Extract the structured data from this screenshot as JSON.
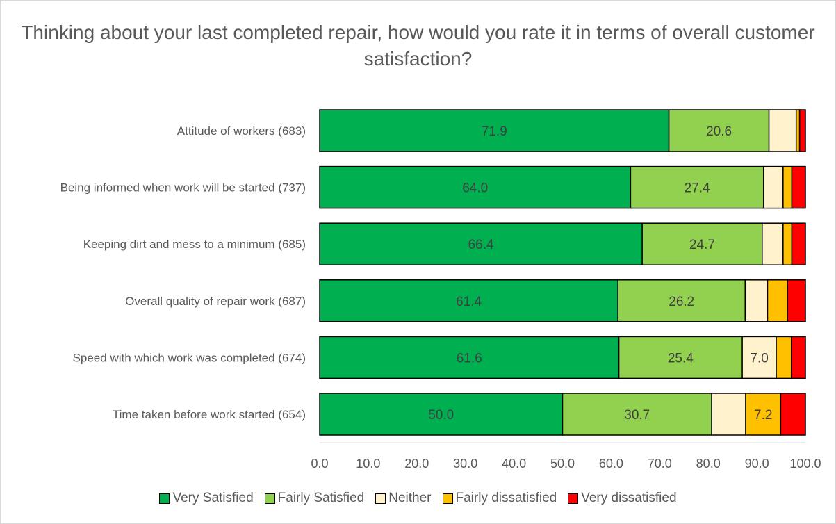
{
  "chart_data": {
    "type": "bar",
    "orientation": "horizontal",
    "stacked": true,
    "title": "Thinking about your last completed repair, how would you rate it in terms of overall customer satisfaction?",
    "categories": [
      "Attitude of workers (683)",
      "Being informed when work will be started (737)",
      "Keeping dirt and mess to a minimum (685)",
      "Overall quality of repair work (687)",
      "Speed with which work was completed (674)",
      "Time taken before work started (654)"
    ],
    "series": [
      {
        "name": "Very Satisfied",
        "color": "#00b050",
        "values": [
          71.9,
          64.0,
          66.4,
          61.4,
          61.6,
          50.0
        ]
      },
      {
        "name": "Fairly Satisfied",
        "color": "#92d050",
        "values": [
          20.6,
          27.4,
          24.7,
          26.2,
          25.4,
          30.7
        ]
      },
      {
        "name": "Neither",
        "color": "#fff2cc",
        "values": [
          5.6,
          4.0,
          4.3,
          4.6,
          7.0,
          7.0
        ]
      },
      {
        "name": "Fairly dissatisfied",
        "color": "#ffc000",
        "values": [
          0.7,
          1.8,
          1.8,
          4.1,
          3.1,
          7.2
        ]
      },
      {
        "name": "Very dissatisfied",
        "color": "#ff0000",
        "values": [
          1.2,
          2.8,
          2.8,
          3.7,
          2.9,
          5.1
        ]
      }
    ],
    "data_labels": [
      [
        "71.9",
        "20.6",
        "",
        "",
        ""
      ],
      [
        "64.0",
        "27.4",
        "",
        "",
        ""
      ],
      [
        "66.4",
        "24.7",
        "",
        "",
        ""
      ],
      [
        "61.4",
        "26.2",
        "",
        "",
        ""
      ],
      [
        "61.6",
        "25.4",
        "7.0",
        "",
        ""
      ],
      [
        "50.0",
        "30.7",
        "",
        "7.2",
        ""
      ]
    ],
    "x_ticks": [
      "0.0",
      "10.0",
      "20.0",
      "30.0",
      "40.0",
      "50.0",
      "60.0",
      "70.0",
      "80.0",
      "90.0",
      "100.0"
    ],
    "xlim": [
      0,
      100
    ],
    "grid": false,
    "legend_position": "bottom"
  }
}
